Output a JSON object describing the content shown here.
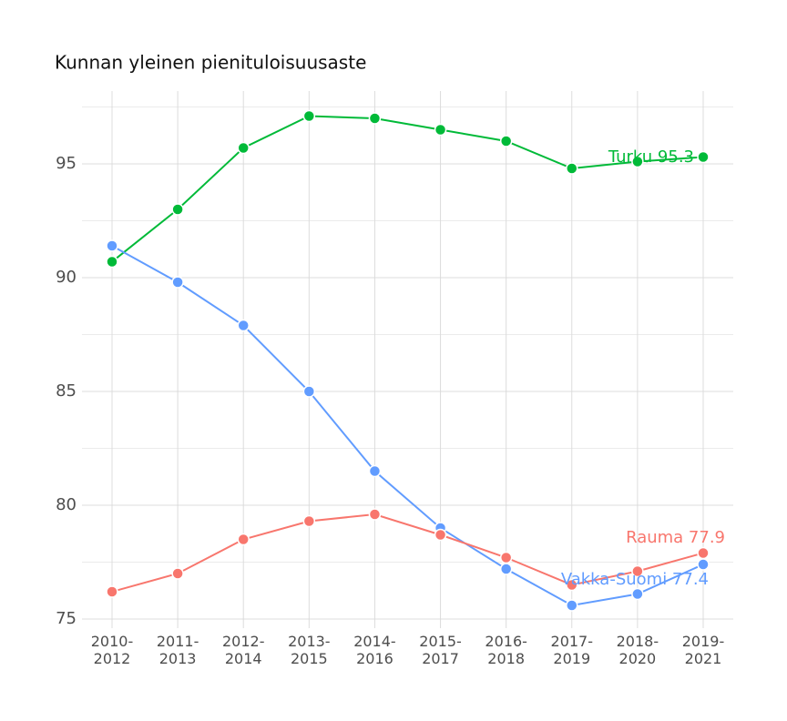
{
  "chart_data": {
    "type": "line",
    "title": "Kunnan yleinen pienituloisuusaste",
    "categories": [
      "2010-2012",
      "2011-2013",
      "2012-2014",
      "2013-2015",
      "2014-2016",
      "2015-2017",
      "2016-2018",
      "2017-2019",
      "2018-2020",
      "2019-2021"
    ],
    "series": [
      {
        "name": "Turku",
        "color": "#00ba38",
        "values": [
          90.7,
          93.0,
          95.7,
          97.1,
          97.0,
          96.5,
          96.0,
          94.8,
          95.1,
          95.3
        ],
        "end_label": "Turku 95.3"
      },
      {
        "name": "Vakka-Suomi",
        "color": "#619cff",
        "values": [
          91.4,
          89.8,
          87.9,
          85.0,
          81.5,
          79.0,
          77.2,
          75.6,
          76.1,
          77.4
        ],
        "end_label": "Vakka-Suomi 77.4"
      },
      {
        "name": "Rauma",
        "color": "#f8766d",
        "values": [
          76.2,
          77.0,
          78.5,
          79.3,
          79.6,
          78.7,
          77.7,
          76.5,
          77.1,
          77.9
        ],
        "end_label": "Rauma 77.9"
      }
    ],
    "ylim": [
      74.6,
      98.2
    ],
    "yticks": [
      75,
      80,
      85,
      90,
      95
    ],
    "minor_yticks": [
      77.5,
      82.5,
      87.5,
      92.5,
      97.5
    ],
    "grid": true
  }
}
